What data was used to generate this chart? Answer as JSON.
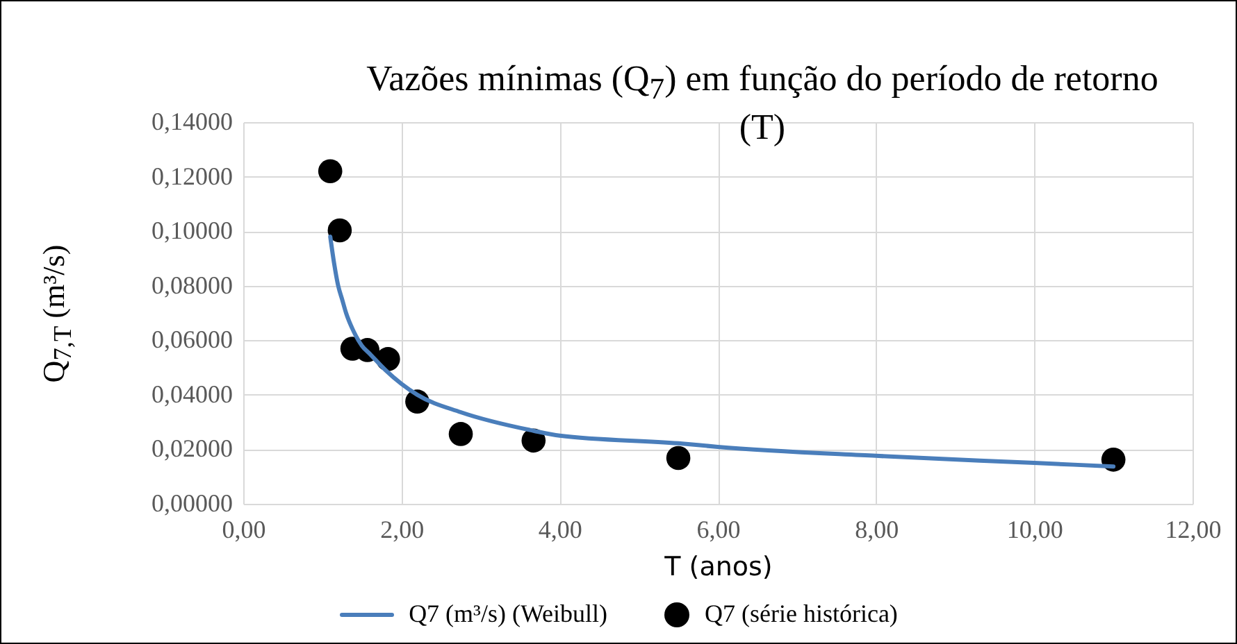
{
  "chart_data": {
    "type": "scatter",
    "title": "Vazões mínimas (Q$_{7}$) em função do período de retorno (T)",
    "xlabel": "T (anos)",
    "ylabel": "Q$_{7,T}$ (m³/s)",
    "xlim": [
      0,
      12
    ],
    "ylim": [
      0,
      0.14
    ],
    "xticks": [
      {
        "value": 0,
        "label": "0,00"
      },
      {
        "value": 2,
        "label": "2,00"
      },
      {
        "value": 4,
        "label": "4,00"
      },
      {
        "value": 6,
        "label": "6,00"
      },
      {
        "value": 8,
        "label": "8,00"
      },
      {
        "value": 10,
        "label": "10,00"
      },
      {
        "value": 12,
        "label": "12,00"
      }
    ],
    "yticks": [
      {
        "value": 0,
        "label": "0,00000"
      },
      {
        "value": 0.02,
        "label": "0,02000"
      },
      {
        "value": 0.04,
        "label": "0,04000"
      },
      {
        "value": 0.06,
        "label": "0,06000"
      },
      {
        "value": 0.08,
        "label": "0,08000"
      },
      {
        "value": 0.1,
        "label": "0,10000"
      },
      {
        "value": 0.12,
        "label": "0,12000"
      },
      {
        "value": 0.14,
        "label": "0,14000"
      }
    ],
    "grid": true,
    "legend": "bottom",
    "series": [
      {
        "name": "Q7 (m³/s) (Weibull)",
        "type": "line",
        "color": "#4a7ebb",
        "x": [
          1.1,
          1.15,
          1.2,
          1.25,
          1.3,
          1.4,
          1.5,
          1.6,
          1.8,
          2.0,
          2.2,
          2.75,
          3.67,
          4.0,
          5.5,
          6.0,
          8.0,
          10.0,
          11.0
        ],
        "values": [
          0.098,
          0.088,
          0.08,
          0.075,
          0.07,
          0.063,
          0.058,
          0.055,
          0.049,
          0.044,
          0.04,
          0.0336,
          0.0268,
          0.025,
          0.0222,
          0.0209,
          0.0176,
          0.015,
          0.0137
        ]
      },
      {
        "name": "Q7 (série histórica)",
        "marker": "circle",
        "color": "#000000",
        "x": [
          1.1,
          1.22,
          1.38,
          1.57,
          1.83,
          2.2,
          2.75,
          3.67,
          5.5,
          11.0
        ],
        "values": [
          0.122,
          0.1003,
          0.0569,
          0.0564,
          0.0531,
          0.0375,
          0.0256,
          0.0232,
          0.0168,
          0.0162
        ]
      }
    ]
  }
}
